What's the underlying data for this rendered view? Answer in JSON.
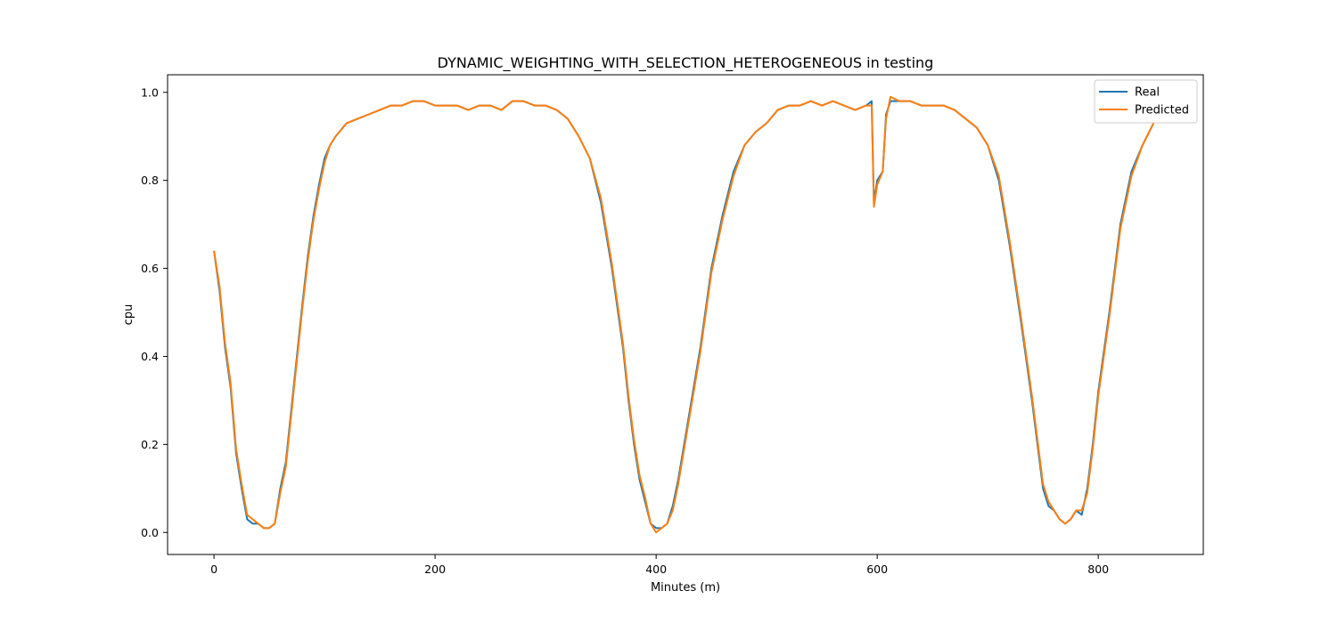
{
  "chart_data": {
    "type": "line",
    "title": "DYNAMIC_WEIGHTING_WITH_SELECTION_HETEROGENEOUS in testing",
    "xlabel": "Minutes (m)",
    "ylabel": "cpu",
    "xlim": [
      -42,
      895
    ],
    "ylim": [
      -0.05,
      1.04
    ],
    "xticks": [
      0,
      200,
      400,
      600,
      800
    ],
    "xtick_labels": [
      "0",
      "200",
      "400",
      "600",
      "800"
    ],
    "yticks": [
      0.0,
      0.2,
      0.4,
      0.6,
      0.8,
      1.0
    ],
    "ytick_labels": [
      "0.0",
      "0.2",
      "0.4",
      "0.6",
      "0.8",
      "1.0"
    ],
    "grid": false,
    "legend_position": "top-right",
    "series": [
      {
        "name": "Real",
        "color": "#1f77b4",
        "x": [
          0,
          5,
          10,
          15,
          20,
          25,
          30,
          35,
          40,
          45,
          50,
          55,
          60,
          65,
          70,
          75,
          80,
          85,
          90,
          95,
          100,
          105,
          110,
          120,
          130,
          140,
          150,
          160,
          170,
          180,
          190,
          200,
          210,
          220,
          230,
          240,
          250,
          260,
          270,
          280,
          290,
          300,
          310,
          320,
          330,
          340,
          350,
          360,
          370,
          375,
          380,
          385,
          390,
          395,
          400,
          405,
          410,
          415,
          420,
          430,
          440,
          450,
          460,
          470,
          480,
          490,
          500,
          510,
          520,
          530,
          540,
          550,
          560,
          570,
          580,
          590,
          595,
          597,
          600,
          605,
          608,
          612,
          620,
          630,
          640,
          650,
          660,
          670,
          680,
          690,
          700,
          710,
          720,
          730,
          740,
          745,
          750,
          755,
          760,
          765,
          770,
          775,
          780,
          785,
          790,
          795,
          800,
          810,
          820,
          830,
          840,
          850
        ],
        "y": [
          0.64,
          0.55,
          0.42,
          0.33,
          0.18,
          0.1,
          0.03,
          0.02,
          0.02,
          0.01,
          0.01,
          0.02,
          0.1,
          0.16,
          0.28,
          0.4,
          0.52,
          0.63,
          0.72,
          0.79,
          0.85,
          0.88,
          0.9,
          0.93,
          0.94,
          0.95,
          0.96,
          0.97,
          0.97,
          0.98,
          0.98,
          0.97,
          0.97,
          0.97,
          0.96,
          0.97,
          0.97,
          0.96,
          0.98,
          0.98,
          0.97,
          0.97,
          0.96,
          0.94,
          0.9,
          0.85,
          0.75,
          0.6,
          0.42,
          0.3,
          0.2,
          0.12,
          0.07,
          0.02,
          0.01,
          0.01,
          0.02,
          0.06,
          0.12,
          0.27,
          0.42,
          0.6,
          0.72,
          0.82,
          0.88,
          0.91,
          0.93,
          0.96,
          0.97,
          0.97,
          0.98,
          0.97,
          0.98,
          0.97,
          0.96,
          0.97,
          0.98,
          0.75,
          0.8,
          0.82,
          0.95,
          0.98,
          0.98,
          0.98,
          0.97,
          0.97,
          0.97,
          0.96,
          0.94,
          0.92,
          0.88,
          0.8,
          0.65,
          0.48,
          0.3,
          0.2,
          0.1,
          0.06,
          0.05,
          0.03,
          0.02,
          0.03,
          0.05,
          0.04,
          0.1,
          0.2,
          0.32,
          0.5,
          0.7,
          0.82,
          0.88,
          0.93
        ]
      },
      {
        "name": "Predicted",
        "color": "#ff7f0e",
        "x": [
          0,
          5,
          10,
          15,
          20,
          25,
          30,
          35,
          40,
          45,
          50,
          55,
          60,
          65,
          70,
          75,
          80,
          85,
          90,
          95,
          100,
          105,
          110,
          120,
          130,
          140,
          150,
          160,
          170,
          180,
          190,
          200,
          210,
          220,
          230,
          240,
          250,
          260,
          270,
          280,
          290,
          300,
          310,
          320,
          330,
          340,
          350,
          360,
          370,
          375,
          380,
          385,
          390,
          395,
          400,
          405,
          410,
          415,
          420,
          430,
          440,
          450,
          460,
          470,
          480,
          490,
          500,
          510,
          520,
          530,
          540,
          550,
          560,
          570,
          580,
          590,
          595,
          597,
          600,
          605,
          608,
          612,
          620,
          630,
          640,
          650,
          660,
          670,
          680,
          690,
          700,
          710,
          720,
          730,
          740,
          745,
          750,
          755,
          760,
          765,
          770,
          775,
          780,
          785,
          790,
          795,
          800,
          810,
          820,
          830,
          840,
          850
        ],
        "y": [
          0.64,
          0.56,
          0.43,
          0.34,
          0.19,
          0.11,
          0.04,
          0.03,
          0.02,
          0.01,
          0.01,
          0.02,
          0.09,
          0.15,
          0.27,
          0.39,
          0.51,
          0.62,
          0.71,
          0.78,
          0.84,
          0.88,
          0.9,
          0.93,
          0.94,
          0.95,
          0.96,
          0.97,
          0.97,
          0.98,
          0.98,
          0.97,
          0.97,
          0.97,
          0.96,
          0.97,
          0.97,
          0.96,
          0.98,
          0.98,
          0.97,
          0.97,
          0.96,
          0.94,
          0.9,
          0.85,
          0.76,
          0.61,
          0.43,
          0.31,
          0.21,
          0.13,
          0.08,
          0.02,
          0.0,
          0.01,
          0.02,
          0.05,
          0.11,
          0.26,
          0.41,
          0.59,
          0.71,
          0.81,
          0.88,
          0.91,
          0.93,
          0.96,
          0.97,
          0.97,
          0.98,
          0.97,
          0.98,
          0.97,
          0.96,
          0.97,
          0.97,
          0.74,
          0.79,
          0.82,
          0.94,
          0.99,
          0.98,
          0.98,
          0.97,
          0.97,
          0.97,
          0.96,
          0.94,
          0.92,
          0.88,
          0.81,
          0.66,
          0.49,
          0.31,
          0.21,
          0.11,
          0.07,
          0.05,
          0.03,
          0.02,
          0.03,
          0.05,
          0.05,
          0.09,
          0.19,
          0.31,
          0.49,
          0.69,
          0.81,
          0.88,
          0.93
        ]
      }
    ]
  }
}
